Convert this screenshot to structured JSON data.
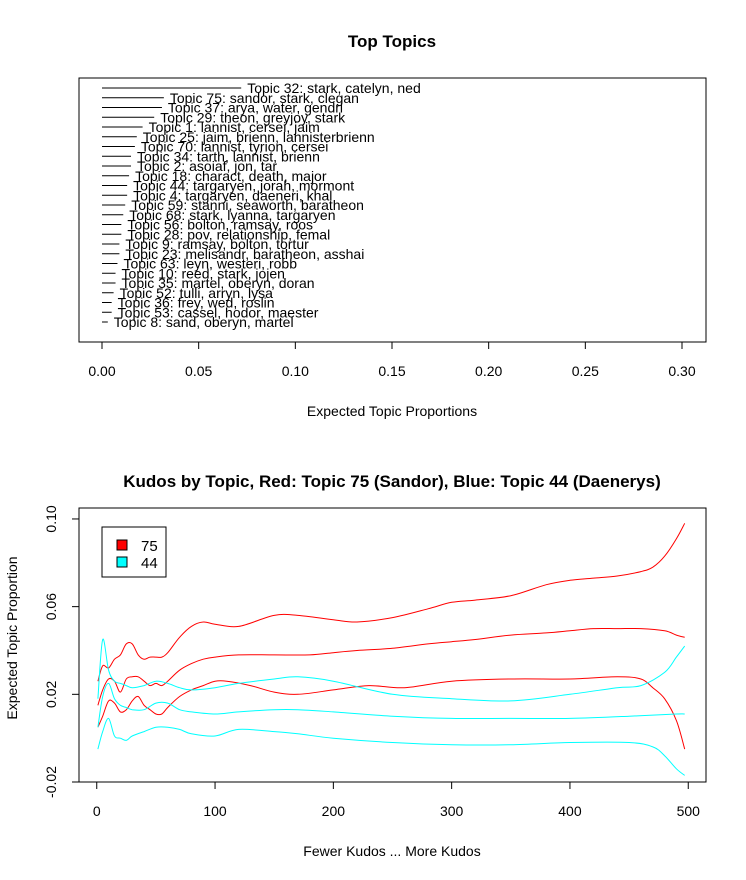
{
  "chart_data": [
    {
      "type": "bar",
      "title": "Top Topics",
      "xlabel": "Expected Topic Proportions",
      "xlim": [
        0,
        0.3
      ],
      "xticks": [
        "0.00",
        "0.05",
        "0.10",
        "0.15",
        "0.20",
        "0.25",
        "0.30"
      ],
      "topics": [
        {
          "label": "Topic 32: stark, catelyn, ned",
          "value": 0.072
        },
        {
          "label": "Topic 75: sandor, stark, clegan",
          "value": 0.032
        },
        {
          "label": "Topic 37: arya, water, gendri",
          "value": 0.031
        },
        {
          "label": "Topic 29: theon, greyjoy, stark",
          "value": 0.027
        },
        {
          "label": "Topic 1: lannist, cersei, jaim",
          "value": 0.021
        },
        {
          "label": "Topic 25: jaim, brienn, lannisterbrienn",
          "value": 0.018
        },
        {
          "label": "Topic 70: lannist, tyrion, cersei",
          "value": 0.017
        },
        {
          "label": "Topic 34: tarth, lannist, brienn",
          "value": 0.015
        },
        {
          "label": "Topic 2: asoiaf, jon, tar",
          "value": 0.015
        },
        {
          "label": "Topic 18: charact, death, major",
          "value": 0.014
        },
        {
          "label": "Topic 44: targaryen, jorah, mormont",
          "value": 0.013
        },
        {
          "label": "Topic 4: targaryen, daeneri, khal",
          "value": 0.013
        },
        {
          "label": "Topic 59: stanni, seaworth, baratheon",
          "value": 0.012
        },
        {
          "label": "Topic 68: stark, lyanna, targaryen",
          "value": 0.011
        },
        {
          "label": "Topic 56: bolton, ramsay, roos",
          "value": 0.01
        },
        {
          "label": "Topic 28: pov, relationship, femal",
          "value": 0.01
        },
        {
          "label": "Topic 9: ramsay, bolton, tortur",
          "value": 0.009
        },
        {
          "label": "Topic 23: melisandr, baratheon, asshai",
          "value": 0.009
        },
        {
          "label": "Topic 63: leyn, westeri, robb",
          "value": 0.008
        },
        {
          "label": "Topic 10: reed, stark, jojen",
          "value": 0.007
        },
        {
          "label": "Topic 35: martel, oberyn, doran",
          "value": 0.007
        },
        {
          "label": "Topic 52: tulli, arryn, lysa",
          "value": 0.006
        },
        {
          "label": "Topic 36: frey, wed, roslin",
          "value": 0.005
        },
        {
          "label": "Topic 53: cassel, hodor, maester",
          "value": 0.005
        },
        {
          "label": "Topic 8: sand, oberyn, martel",
          "value": 0.003
        }
      ]
    },
    {
      "type": "line",
      "title": "Kudos by Topic, Red: Topic 75 (Sandor), Blue: Topic 44 (Daenerys)",
      "xlabel": "Fewer Kudos ... More Kudos",
      "ylabel": "Expected Topic Proportion",
      "xlim": [
        -15,
        515
      ],
      "ylim": [
        -0.02,
        0.105
      ],
      "xticks": [
        "0",
        "100",
        "200",
        "300",
        "400",
        "500"
      ],
      "yticks": [
        "-0.02",
        "0.02",
        "0.06",
        "0.10"
      ],
      "legend": {
        "placement": "top-left",
        "entries": [
          {
            "label": "75",
            "color": "#ff0000"
          },
          {
            "label": "44",
            "color": "#00ffff"
          }
        ]
      },
      "series": [
        {
          "color": "#ff0000",
          "role": "mean",
          "x": [
            1,
            5,
            10,
            15,
            20,
            25,
            30,
            35,
            40,
            45,
            50,
            55,
            60,
            70,
            80,
            90,
            100,
            120,
            150,
            180,
            200,
            220,
            250,
            280,
            300,
            320,
            350,
            380,
            400,
            420,
            440,
            460,
            480,
            490,
            497
          ],
          "y": [
            0.015,
            0.022,
            0.027,
            0.026,
            0.021,
            0.027,
            0.028,
            0.028,
            0.026,
            0.024,
            0.025,
            0.024,
            0.026,
            0.031,
            0.034,
            0.036,
            0.037,
            0.038,
            0.038,
            0.038,
            0.039,
            0.04,
            0.041,
            0.043,
            0.044,
            0.045,
            0.047,
            0.048,
            0.049,
            0.05,
            0.05,
            0.05,
            0.049,
            0.047,
            0.046
          ]
        },
        {
          "color": "#ff0000",
          "role": "upper",
          "x": [
            1,
            5,
            10,
            15,
            20,
            25,
            30,
            35,
            40,
            45,
            50,
            55,
            60,
            70,
            80,
            90,
            100,
            120,
            150,
            170,
            200,
            220,
            250,
            280,
            300,
            320,
            350,
            380,
            400,
            420,
            440,
            460,
            470,
            480,
            490,
            497
          ],
          "y": [
            0.026,
            0.033,
            0.032,
            0.036,
            0.038,
            0.043,
            0.043,
            0.038,
            0.036,
            0.037,
            0.037,
            0.037,
            0.039,
            0.046,
            0.051,
            0.053,
            0.052,
            0.051,
            0.056,
            0.056,
            0.054,
            0.053,
            0.055,
            0.059,
            0.062,
            0.063,
            0.065,
            0.07,
            0.072,
            0.073,
            0.074,
            0.076,
            0.078,
            0.083,
            0.091,
            0.098
          ]
        },
        {
          "color": "#ff0000",
          "role": "lower",
          "x": [
            1,
            5,
            10,
            15,
            20,
            25,
            30,
            35,
            40,
            45,
            50,
            55,
            60,
            70,
            80,
            90,
            100,
            110,
            130,
            150,
            170,
            200,
            230,
            260,
            300,
            350,
            400,
            440,
            460,
            470,
            480,
            490,
            497
          ],
          "y": [
            0.005,
            0.01,
            0.017,
            0.016,
            0.012,
            0.013,
            0.017,
            0.019,
            0.015,
            0.013,
            0.011,
            0.011,
            0.014,
            0.019,
            0.022,
            0.024,
            0.026,
            0.026,
            0.024,
            0.021,
            0.02,
            0.022,
            0.024,
            0.023,
            0.026,
            0.027,
            0.027,
            0.028,
            0.027,
            0.023,
            0.018,
            0.008,
            -0.005
          ]
        },
        {
          "color": "#00ffff",
          "role": "mean",
          "x": [
            1,
            5,
            10,
            15,
            20,
            25,
            30,
            40,
            50,
            60,
            70,
            80,
            100,
            120,
            150,
            170,
            200,
            250,
            300,
            350,
            400,
            450,
            490,
            497
          ],
          "y": [
            0.005,
            0.019,
            0.025,
            0.018,
            0.015,
            0.014,
            0.013,
            0.013,
            0.016,
            0.016,
            0.013,
            0.012,
            0.011,
            0.012,
            0.013,
            0.013,
            0.012,
            0.01,
            0.009,
            0.009,
            0.009,
            0.01,
            0.011,
            0.011
          ]
        },
        {
          "color": "#00ffff",
          "role": "upper",
          "x": [
            1,
            5,
            10,
            15,
            20,
            25,
            30,
            40,
            50,
            60,
            70,
            80,
            100,
            120,
            150,
            170,
            200,
            250,
            300,
            350,
            400,
            440,
            460,
            480,
            490,
            497
          ],
          "y": [
            0.018,
            0.045,
            0.031,
            0.026,
            0.025,
            0.024,
            0.023,
            0.024,
            0.026,
            0.025,
            0.023,
            0.022,
            0.023,
            0.025,
            0.027,
            0.028,
            0.026,
            0.02,
            0.018,
            0.017,
            0.02,
            0.023,
            0.024,
            0.03,
            0.037,
            0.042
          ]
        },
        {
          "color": "#00ffff",
          "role": "lower",
          "x": [
            1,
            5,
            10,
            15,
            20,
            25,
            30,
            40,
            50,
            60,
            70,
            80,
            100,
            120,
            150,
            170,
            200,
            250,
            300,
            350,
            400,
            450,
            470,
            480,
            490,
            497
          ],
          "y": [
            -0.005,
            0.003,
            0.009,
            0.001,
            0.0,
            -0.001,
            0.001,
            0.003,
            0.005,
            0.005,
            0.004,
            0.002,
            0.001,
            0.004,
            0.003,
            0.002,
            0.0,
            -0.002,
            -0.003,
            -0.003,
            -0.002,
            -0.002,
            -0.004,
            -0.008,
            -0.014,
            -0.017
          ]
        }
      ]
    }
  ]
}
